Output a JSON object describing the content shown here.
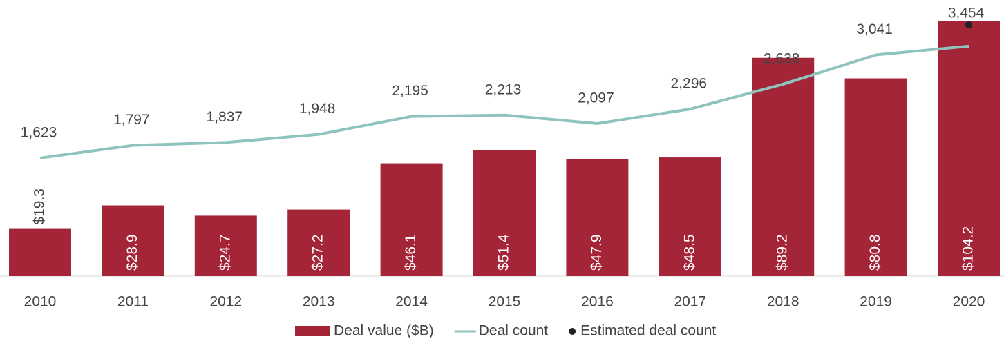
{
  "chart_data": {
    "type": "bar",
    "categories": [
      "2010",
      "2011",
      "2012",
      "2013",
      "2014",
      "2015",
      "2016",
      "2017",
      "2018",
      "2019",
      "2020"
    ],
    "ylim": [
      0,
      110
    ],
    "y2lim": [
      0,
      3700
    ],
    "series": [
      {
        "name": "Deal value ($B)",
        "type": "bar",
        "color": "#a52538",
        "values": [
          19.3,
          28.9,
          24.7,
          27.2,
          46.1,
          51.4,
          47.9,
          48.5,
          89.2,
          80.8,
          104.2
        ],
        "value_labels": [
          "$19.3",
          "$28.9",
          "$24.7",
          "$27.2",
          "$46.1",
          "$51.4",
          "$47.9",
          "$48.5",
          "$89.2",
          "$80.8",
          "$104.2"
        ]
      },
      {
        "name": "Deal count",
        "type": "line",
        "axis": "y2",
        "color": "#8fc4be",
        "values": [
          1623,
          1797,
          1837,
          1948,
          2195,
          2213,
          2097,
          2296,
          2638,
          3041,
          3160
        ],
        "value_labels": [
          "1,623",
          "1,797",
          "1,837",
          "1,948",
          "2,195",
          "2,213",
          "2,097",
          "2,296",
          "2,638",
          "3,041",
          null
        ]
      },
      {
        "name": "Estimated deal count",
        "type": "scatter",
        "axis": "y2",
        "color": "#222222",
        "values": [
          null,
          null,
          null,
          null,
          null,
          null,
          null,
          null,
          null,
          null,
          3454
        ],
        "value_labels": [
          null,
          null,
          null,
          null,
          null,
          null,
          null,
          null,
          null,
          null,
          "3,454"
        ]
      }
    ]
  }
}
